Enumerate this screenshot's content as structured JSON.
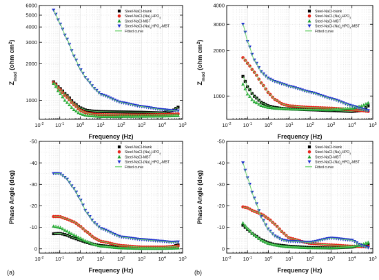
{
  "figure": {
    "panel_labels": [
      "(a)",
      "(b)"
    ]
  },
  "legend": {
    "entries": [
      {
        "label": "Steel-NaCl-blank",
        "color": "#000000",
        "marker": "square"
      },
      {
        "label": "Steel-NaCl-(Na)₂HPO₄",
        "color": "#e8241a",
        "marker": "circle"
      },
      {
        "label": "Steel-NaCl-MBT",
        "color": "#1b9e2f",
        "marker": "triangle-up"
      },
      {
        "label": "Steel-NaCl-(Na)₂HPO₄-MBT",
        "color": "#1f2fd0",
        "marker": "triangle-down"
      },
      {
        "label": "Fitted curve",
        "color": "#6ad36a",
        "marker": "line"
      }
    ]
  },
  "chart_data": [
    {
      "type": "scatter",
      "panel": "top-left",
      "xlabel": "Frequency (Hz)",
      "ylabel": "Z_mod (ohm cm²)",
      "xscale": "log",
      "yscale": "log",
      "xlim": [
        0.01,
        100000
      ],
      "ylim": [
        700,
        6000
      ],
      "yticks": [
        1000,
        2000,
        3000,
        4000,
        5000,
        6000
      ],
      "yticklabels": [
        "1000",
        "2000",
        "3000",
        "4000",
        "5000",
        "6000"
      ],
      "legend_position": "top-right",
      "grid": true,
      "series": [
        {
          "name": "Steel-NaCl-blank",
          "x": [
            0.05,
            0.1,
            0.2,
            0.5,
            1,
            2,
            5,
            10,
            100,
            1000,
            10000,
            30000,
            60000
          ],
          "y": [
            1420,
            1260,
            1120,
            950,
            870,
            830,
            815,
            810,
            805,
            800,
            790,
            820,
            880
          ]
        },
        {
          "name": "Steel-NaCl-(Na)₂HPO₄",
          "x": [
            0.05,
            0.1,
            0.2,
            0.5,
            1,
            2,
            5,
            10,
            100,
            1000,
            10000,
            30000,
            60000
          ],
          "y": [
            1400,
            1230,
            1080,
            920,
            830,
            790,
            770,
            765,
            760,
            760,
            765,
            770,
            775
          ]
        },
        {
          "name": "Steel-NaCl-MBT",
          "x": [
            0.05,
            0.1,
            0.2,
            0.5,
            1,
            2,
            5,
            10,
            100,
            1000,
            10000,
            30000,
            60000
          ],
          "y": [
            1380,
            1150,
            980,
            840,
            780,
            755,
            745,
            740,
            740,
            742,
            745,
            748,
            752
          ]
        },
        {
          "name": "Steel-NaCl-(Na)₂HPO₄-MBT",
          "x": [
            0.05,
            0.1,
            0.2,
            0.5,
            1,
            2,
            5,
            10,
            100,
            1000,
            10000,
            30000,
            60000
          ],
          "y": [
            5500,
            4300,
            3300,
            2300,
            1800,
            1500,
            1250,
            1120,
            960,
            890,
            840,
            825,
            820
          ]
        }
      ]
    },
    {
      "type": "scatter",
      "panel": "top-right",
      "xlabel": "Frequency (Hz)",
      "ylabel": "Z_mod (ohm cm²)",
      "xscale": "log",
      "yscale": "log",
      "xlim": [
        0.01,
        100000
      ],
      "ylim": [
        700,
        4000
      ],
      "yticks": [
        1000,
        2000,
        3000,
        4000
      ],
      "yticklabels": [
        "1000",
        "2000",
        "3000",
        "4000"
      ],
      "legend_position": "top-right",
      "grid": true,
      "series": [
        {
          "name": "Steel-NaCl-blank",
          "x": [
            0.06,
            0.1,
            0.2,
            0.5,
            1,
            2,
            5,
            10,
            100,
            1000,
            10000,
            30000,
            60000
          ],
          "y": [
            1350,
            1150,
            1000,
            900,
            860,
            840,
            825,
            820,
            810,
            800,
            790,
            800,
            860
          ]
        },
        {
          "name": "Steel-NaCl-(Na)₂HPO₄",
          "x": [
            0.06,
            0.1,
            0.2,
            0.5,
            1,
            2,
            5,
            10,
            100,
            1000,
            10000,
            30000,
            60000
          ],
          "y": [
            1800,
            1650,
            1450,
            1200,
            1050,
            950,
            880,
            860,
            840,
            830,
            810,
            800,
            790
          ]
        },
        {
          "name": "Steel-NaCl-MBT",
          "x": [
            0.06,
            0.1,
            0.2,
            0.5,
            1,
            2,
            5,
            10,
            100,
            1000,
            10000,
            30000,
            60000
          ],
          "y": [
            1200,
            1030,
            920,
            860,
            840,
            830,
            825,
            820,
            815,
            810,
            830,
            860,
            900
          ]
        },
        {
          "name": "Steel-NaCl-(Na)₂HPO₄-MBT",
          "x": [
            0.06,
            0.1,
            0.2,
            0.5,
            1,
            2,
            5,
            10,
            100,
            1000,
            10000,
            30000,
            60000
          ],
          "y": [
            3000,
            2300,
            1750,
            1420,
            1310,
            1250,
            1200,
            1160,
            1060,
            960,
            860,
            820,
            800
          ]
        }
      ]
    },
    {
      "type": "scatter",
      "panel": "bottom-left",
      "xlabel": "Frequency (Hz)",
      "ylabel": "Phase Angle (deg)",
      "xscale": "log",
      "yscale": "linear",
      "xlim": [
        0.01,
        100000
      ],
      "ylim": [
        2,
        -50
      ],
      "yticks": [
        0,
        -10,
        -20,
        -30,
        -40,
        -50
      ],
      "legend_position": "top-right",
      "grid": true,
      "series": [
        {
          "name": "Steel-NaCl-blank",
          "x": [
            0.05,
            0.1,
            0.2,
            0.5,
            1,
            2,
            5,
            10,
            100,
            1000,
            10000,
            30000,
            60000
          ],
          "y": [
            -7,
            -7.2,
            -6.5,
            -5,
            -4,
            -3,
            -2,
            -1.5,
            -0.6,
            -0.3,
            -0.4,
            -1,
            -1.8
          ]
        },
        {
          "name": "Steel-NaCl-(Na)₂HPO₄",
          "x": [
            0.05,
            0.1,
            0.2,
            0.5,
            1,
            2,
            5,
            10,
            100,
            1000,
            10000,
            30000,
            60000
          ],
          "y": [
            -15,
            -15,
            -14,
            -12.5,
            -10.5,
            -8,
            -5,
            -3.5,
            -1.5,
            -0.8,
            -0.8,
            -1,
            -1.3
          ]
        },
        {
          "name": "Steel-NaCl-MBT",
          "x": [
            0.05,
            0.1,
            0.2,
            0.5,
            1,
            2,
            5,
            10,
            100,
            1000,
            10000,
            30000,
            60000
          ],
          "y": [
            -10.5,
            -10,
            -8.5,
            -6.5,
            -5,
            -3.5,
            -2,
            -1.3,
            -0.4,
            -0.2,
            -0.2,
            -0.3,
            -0.4
          ]
        },
        {
          "name": "Steel-NaCl-(Na)₂HPO₄-MBT",
          "x": [
            0.05,
            0.1,
            0.2,
            0.5,
            1,
            2,
            5,
            10,
            100,
            1000,
            10000,
            30000,
            60000
          ],
          "y": [
            -35,
            -35,
            -33,
            -28,
            -23,
            -17,
            -12,
            -9.5,
            -5.5,
            -4.3,
            -3.5,
            -3,
            -3.2
          ]
        }
      ]
    },
    {
      "type": "scatter",
      "panel": "bottom-right",
      "xlabel": "Frequency (Hz)",
      "ylabel": "Phase Angle (deg)",
      "xscale": "log",
      "yscale": "linear",
      "xlim": [
        0.01,
        100000
      ],
      "ylim": [
        2,
        -50
      ],
      "yticks": [
        0,
        -10,
        -20,
        -30,
        -40,
        -50
      ],
      "legend_position": "top-right",
      "grid": true,
      "series": [
        {
          "name": "Steel-NaCl-blank",
          "x": [
            0.06,
            0.1,
            0.2,
            0.5,
            1,
            2,
            5,
            10,
            100,
            1000,
            10000,
            30000,
            60000
          ],
          "y": [
            -11,
            -9,
            -6.5,
            -4,
            -2.8,
            -2,
            -1.5,
            -1.2,
            -0.6,
            -0.4,
            -0.8,
            -1.5,
            -2.2
          ]
        },
        {
          "name": "Steel-NaCl-(Na)₂HPO₄",
          "x": [
            0.06,
            0.1,
            0.2,
            0.5,
            1,
            2,
            5,
            10,
            100,
            1000,
            10000,
            30000,
            60000
          ],
          "y": [
            -19.5,
            -19,
            -17.5,
            -16,
            -14,
            -11.5,
            -7.5,
            -5,
            -2.5,
            -1.8,
            -1.2,
            -1,
            -1
          ]
        },
        {
          "name": "Steel-NaCl-MBT",
          "x": [
            0.06,
            0.1,
            0.2,
            0.5,
            1,
            2,
            5,
            10,
            100,
            1000,
            10000,
            30000,
            60000
          ],
          "y": [
            -12,
            -9.5,
            -6.5,
            -3.8,
            -2.5,
            -1.8,
            -1.2,
            -0.9,
            -0.5,
            -0.5,
            -1,
            -2,
            -3
          ]
        },
        {
          "name": "Steel-NaCl-(Na)₂HPO₄-MBT",
          "x": [
            0.06,
            0.1,
            0.2,
            0.5,
            1,
            2,
            5,
            10,
            100,
            1000,
            10000,
            30000,
            60000
          ],
          "y": [
            -40,
            -33,
            -24,
            -14,
            -9,
            -6,
            -4,
            -3.5,
            -3,
            -5,
            -4,
            -1.5,
            -0.5
          ]
        }
      ]
    }
  ]
}
